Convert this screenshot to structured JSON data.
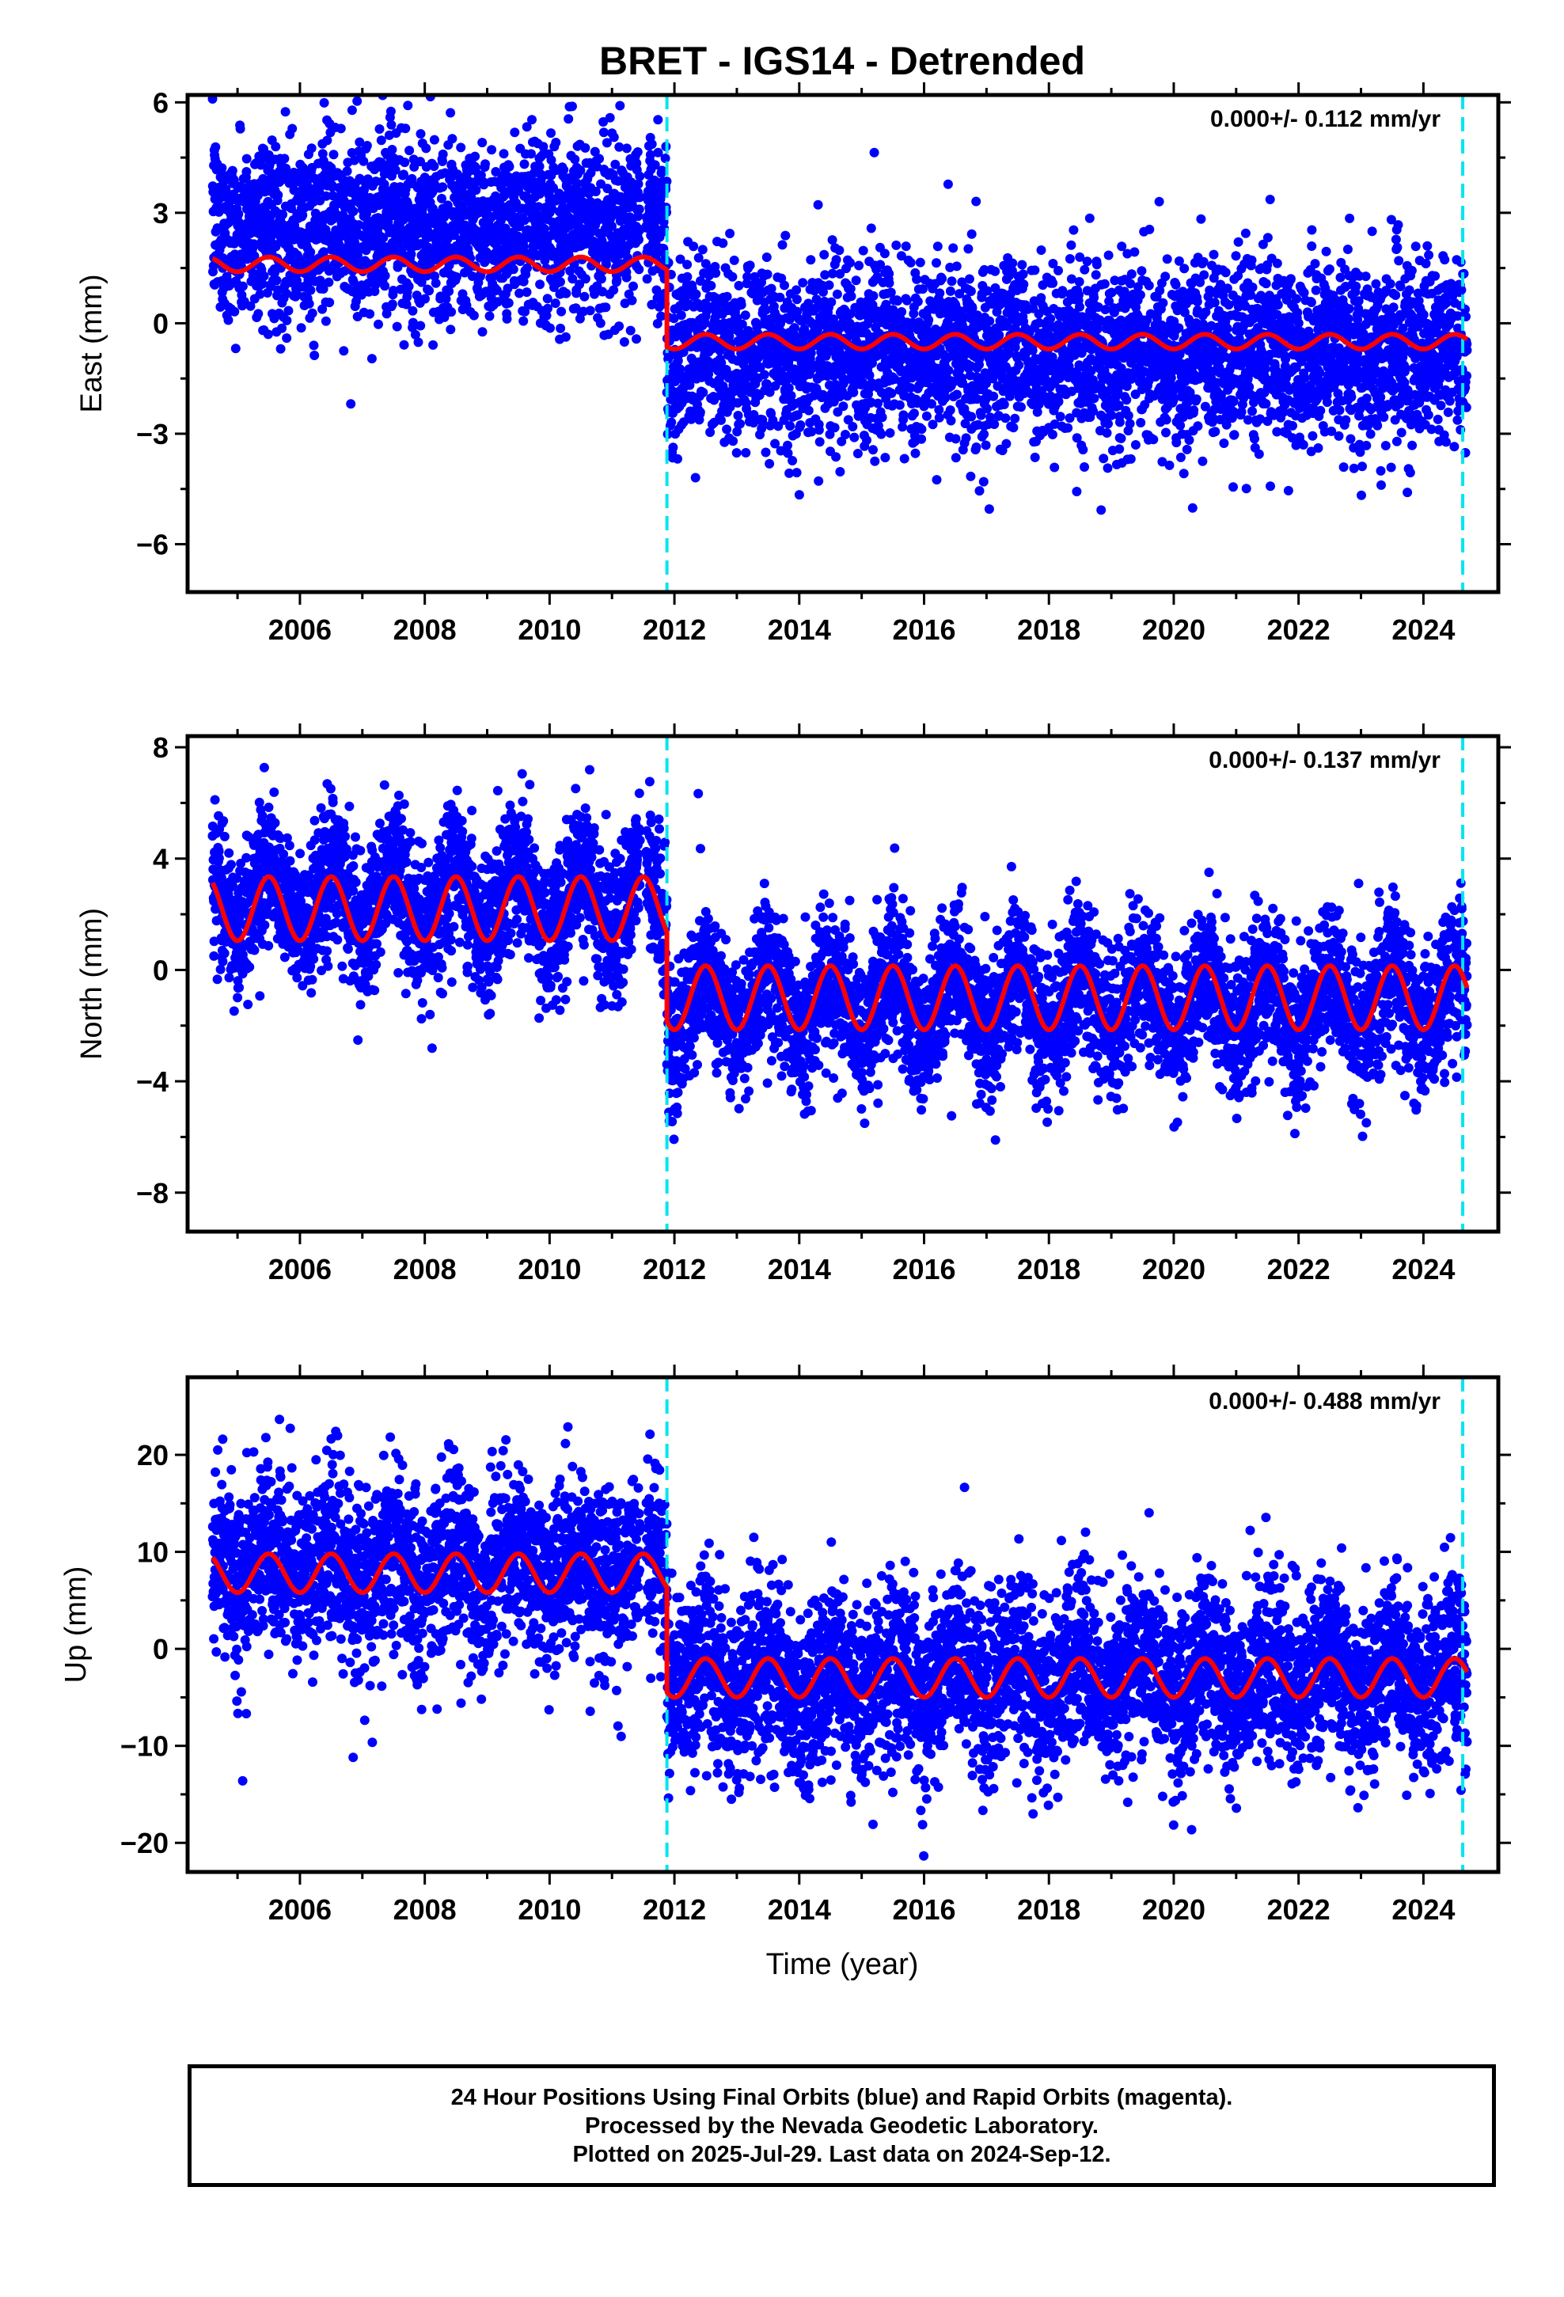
{
  "title": "BRET - IGS14 - Detrended",
  "xlabel": "Time (year)",
  "caption": [
    "24 Hour Positions Using Final Orbits (blue) and Rapid Orbits (magenta).",
    "Processed by the Nevada Geodetic Laboratory.",
    "Plotted on 2025-Jul-29. Last data on 2024-Sep-12."
  ],
  "colors": {
    "points": "#0000ff",
    "model": "#ff0000",
    "breaks": "#00e5ee",
    "frame": "#000000"
  },
  "chart_data": [
    {
      "type": "scatter",
      "name": "east",
      "ylabel": "East (mm)",
      "rate_label": "0.000+/- 0.112 mm/yr",
      "xlim": [
        2004.2,
        2025.2
      ],
      "ylim": [
        -7.3,
        6.2
      ],
      "xticks": [
        2006,
        2008,
        2010,
        2012,
        2014,
        2016,
        2018,
        2020,
        2022,
        2024
      ],
      "yticks": [
        6,
        3,
        0,
        -3,
        -6
      ],
      "ytick_labels": [
        "6",
        "3",
        "0",
        "−3",
        "−6"
      ],
      "breaks": [
        2011.88,
        2024.63
      ],
      "data_span": [
        2004.6,
        2024.7
      ],
      "offsets": [
        1.5,
        -0.55
      ],
      "seasonal_amp": [
        0.2,
        0.2
      ],
      "noise_sd": 1.2,
      "segment_bias": [
        1.1,
        -0.2
      ],
      "model": {
        "segment1": {
          "x_range": [
            2004.6,
            2011.88
          ],
          "mean": 1.6,
          "amplitude": 0.2,
          "period_yr": 1.0
        },
        "segment2": {
          "x_range": [
            2011.88,
            2024.7
          ],
          "mean": -0.5,
          "amplitude": 0.2,
          "period_yr": 1.0
        }
      }
    },
    {
      "type": "scatter",
      "name": "north",
      "ylabel": "North (mm)",
      "rate_label": "0.000+/- 0.137 mm/yr",
      "xlim": [
        2004.2,
        2025.2
      ],
      "ylim": [
        -9.4,
        8.4
      ],
      "xticks": [
        2006,
        2008,
        2010,
        2012,
        2014,
        2016,
        2018,
        2020,
        2022,
        2024
      ],
      "yticks": [
        8,
        4,
        0,
        -4,
        -8
      ],
      "ytick_labels": [
        "8",
        "4",
        "0",
        "−4",
        "−8"
      ],
      "breaks": [
        2011.88,
        2024.63
      ],
      "data_span": [
        2004.6,
        2024.7
      ],
      "offsets": [
        2.2,
        -1.0
      ],
      "seasonal_amp": [
        1.15,
        1.15
      ],
      "noise_sd": 1.3,
      "segment_bias": [
        0.3,
        -0.2
      ],
      "model": {
        "segment1": {
          "x_range": [
            2004.6,
            2011.88
          ],
          "mean": 2.2,
          "amplitude": 1.15,
          "period_yr": 1.0
        },
        "segment2": {
          "x_range": [
            2011.88,
            2024.7
          ],
          "mean": -1.0,
          "amplitude": 1.15,
          "period_yr": 1.0
        }
      }
    },
    {
      "type": "scatter",
      "name": "up",
      "ylabel": "Up (mm)",
      "rate_label": "0.000+/- 0.488 mm/yr",
      "xlim": [
        2004.2,
        2025.2
      ],
      "ylim": [
        -23,
        28
      ],
      "xticks": [
        2006,
        2008,
        2010,
        2012,
        2014,
        2016,
        2018,
        2020,
        2022,
        2024
      ],
      "yticks": [
        20,
        10,
        0,
        -10,
        -20
      ],
      "ytick_labels": [
        "20",
        "10",
        "0",
        "−10",
        "−20"
      ],
      "breaks": [
        2011.88,
        2024.63
      ],
      "data_span": [
        2004.6,
        2024.7
      ],
      "offsets": [
        7.8,
        -3.0
      ],
      "seasonal_amp": [
        2.0,
        2.0
      ],
      "noise_sd": 4.6,
      "segment_bias": [
        0.5,
        0.0
      ],
      "model": {
        "segment1": {
          "x_range": [
            2004.6,
            2011.88
          ],
          "mean": 7.8,
          "amplitude": 2.0,
          "period_yr": 1.0
        },
        "segment2": {
          "x_range": [
            2011.88,
            2024.7
          ],
          "mean": -3.0,
          "amplitude": 2.0,
          "period_yr": 1.0
        }
      }
    }
  ]
}
